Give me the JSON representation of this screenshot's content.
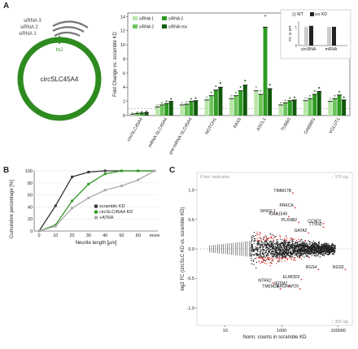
{
  "panels": {
    "a": "A",
    "b": "B",
    "c": "C"
  },
  "schematic": {
    "sirna_labels": [
      "siRNA 3",
      "siRNA 2",
      "siRNA 1"
    ],
    "junction_label": "htJ",
    "circ_label": "circSLC45A4",
    "colors": {
      "circle": "#2e8b1f",
      "arc": "#777777"
    }
  },
  "chart_a": {
    "type": "bar",
    "ylabel": "Fold Change vs. scramble KD",
    "yticks": [
      0,
      2,
      4,
      6,
      8,
      10,
      12,
      14
    ],
    "ylim": [
      0,
      14.5
    ],
    "genes": [
      "circSLC45A4",
      "mRNA SLC45A4",
      "pre-mRNA SLC45A4",
      "NOTCH1",
      "PAX6",
      "ASCL1",
      "TUBB3",
      "GABBR1",
      "VGLUT1"
    ],
    "legend": [
      "siRNA 1",
      "siRNA 2",
      "siRNA 3",
      "siRNA mix"
    ],
    "colors": [
      "#b8e6a8",
      "#6cc45a",
      "#2f9b22",
      "#0f5a0a"
    ],
    "series": [
      {
        "name": "siRNA 1",
        "values": [
          0.2,
          1.2,
          1.5,
          2.2,
          2.4,
          3.5,
          1.5,
          2.1,
          2.0
        ]
      },
      {
        "name": "siRNA 2",
        "values": [
          0.3,
          1.5,
          1.6,
          2.8,
          2.8,
          3.0,
          1.8,
          2.4,
          2.4
        ]
      },
      {
        "name": "siRNA 3",
        "values": [
          0.35,
          1.7,
          2.0,
          3.6,
          3.5,
          12.5,
          2.1,
          3.0,
          2.9
        ]
      },
      {
        "name": "siRNA mix",
        "values": [
          0.4,
          2.0,
          2.1,
          4.0,
          4.3,
          3.8,
          2.2,
          3.4,
          2.2
        ]
      }
    ],
    "ns_label": "n.s.",
    "inset": {
      "ylabel": "FC to WT",
      "categories": [
        "circRNA",
        "mRNA"
      ],
      "legend": [
        "WT",
        "scr KD"
      ],
      "wt": [
        1.0,
        1.0
      ],
      "scr": [
        1.05,
        1.0
      ],
      "yticks": [
        0,
        1
      ]
    }
  },
  "chart_b": {
    "type": "line",
    "xlabel": "Neurite length [µm]",
    "ylabel": "Cumulative percentage [%]",
    "xticks": [
      "0",
      "10",
      "20",
      "30",
      "40",
      "50",
      "60",
      "more"
    ],
    "yticks": [
      0,
      20,
      40,
      60,
      80,
      100
    ],
    "series": [
      {
        "name": "scramble KD",
        "color": "#333333",
        "values": [
          0,
          42,
          90,
          98,
          100,
          100,
          100,
          100
        ]
      },
      {
        "name": "circSLC45A4 KD",
        "color": "#2f9b22",
        "values": [
          0,
          10,
          50,
          78,
          95,
          100,
          100,
          100
        ]
      },
      {
        "name": "+ATRA",
        "color": "#aaaaaa",
        "values": [
          0,
          8,
          38,
          55,
          68,
          75,
          85,
          100
        ]
      }
    ]
  },
  "chart_c": {
    "type": "scatter",
    "note": "6 biol. replicates",
    "top_label": "379 sig.",
    "bottom_label": "350 sig.",
    "xlabel": "Norm. counts in scramble KD",
    "ylabel": "log2 FC (circSLC KD vs. scramble KD)",
    "xticks": [
      "10",
      "1000",
      "100000"
    ],
    "yticks": [
      "1.0",
      "0.5",
      "0.0",
      "-0.5",
      "-1.0"
    ],
    "ylim": [
      -1.3,
      1.3
    ],
    "colors": {
      "sig": "#e8312a",
      "ns": "#222222"
    },
    "genes": [
      {
        "label": "TIMM17B",
        "x": 2500,
        "y": 0.95
      },
      {
        "label": "PRKCA",
        "x": 3000,
        "y": 0.7
      },
      {
        "label": "SH3GL1",
        "x": 700,
        "y": 0.6
      },
      {
        "label": "KIAA1549",
        "x": 1800,
        "y": 0.55
      },
      {
        "label": "PLXNB2",
        "x": 4000,
        "y": 0.45
      },
      {
        "label": "CCND1",
        "x": 30000,
        "y": 0.43
      },
      {
        "label": "TTYH3",
        "x": 30000,
        "y": 0.37
      },
      {
        "label": "GATA2",
        "x": 9000,
        "y": 0.27
      },
      {
        "label": "RGS4",
        "x": 20000,
        "y": -0.35
      },
      {
        "label": "RGS5",
        "x": 180000,
        "y": -0.35
      },
      {
        "label": "ELMOD2",
        "x": 5000,
        "y": -0.52
      },
      {
        "label": "NTRK2",
        "x": 500,
        "y": -0.58
      },
      {
        "label": "IFITM2",
        "x": 1800,
        "y": -0.63
      },
      {
        "label": "TMEM26",
        "x": 900,
        "y": -0.68
      },
      {
        "label": "ARGHAP29",
        "x": 4500,
        "y": -0.68
      }
    ]
  }
}
